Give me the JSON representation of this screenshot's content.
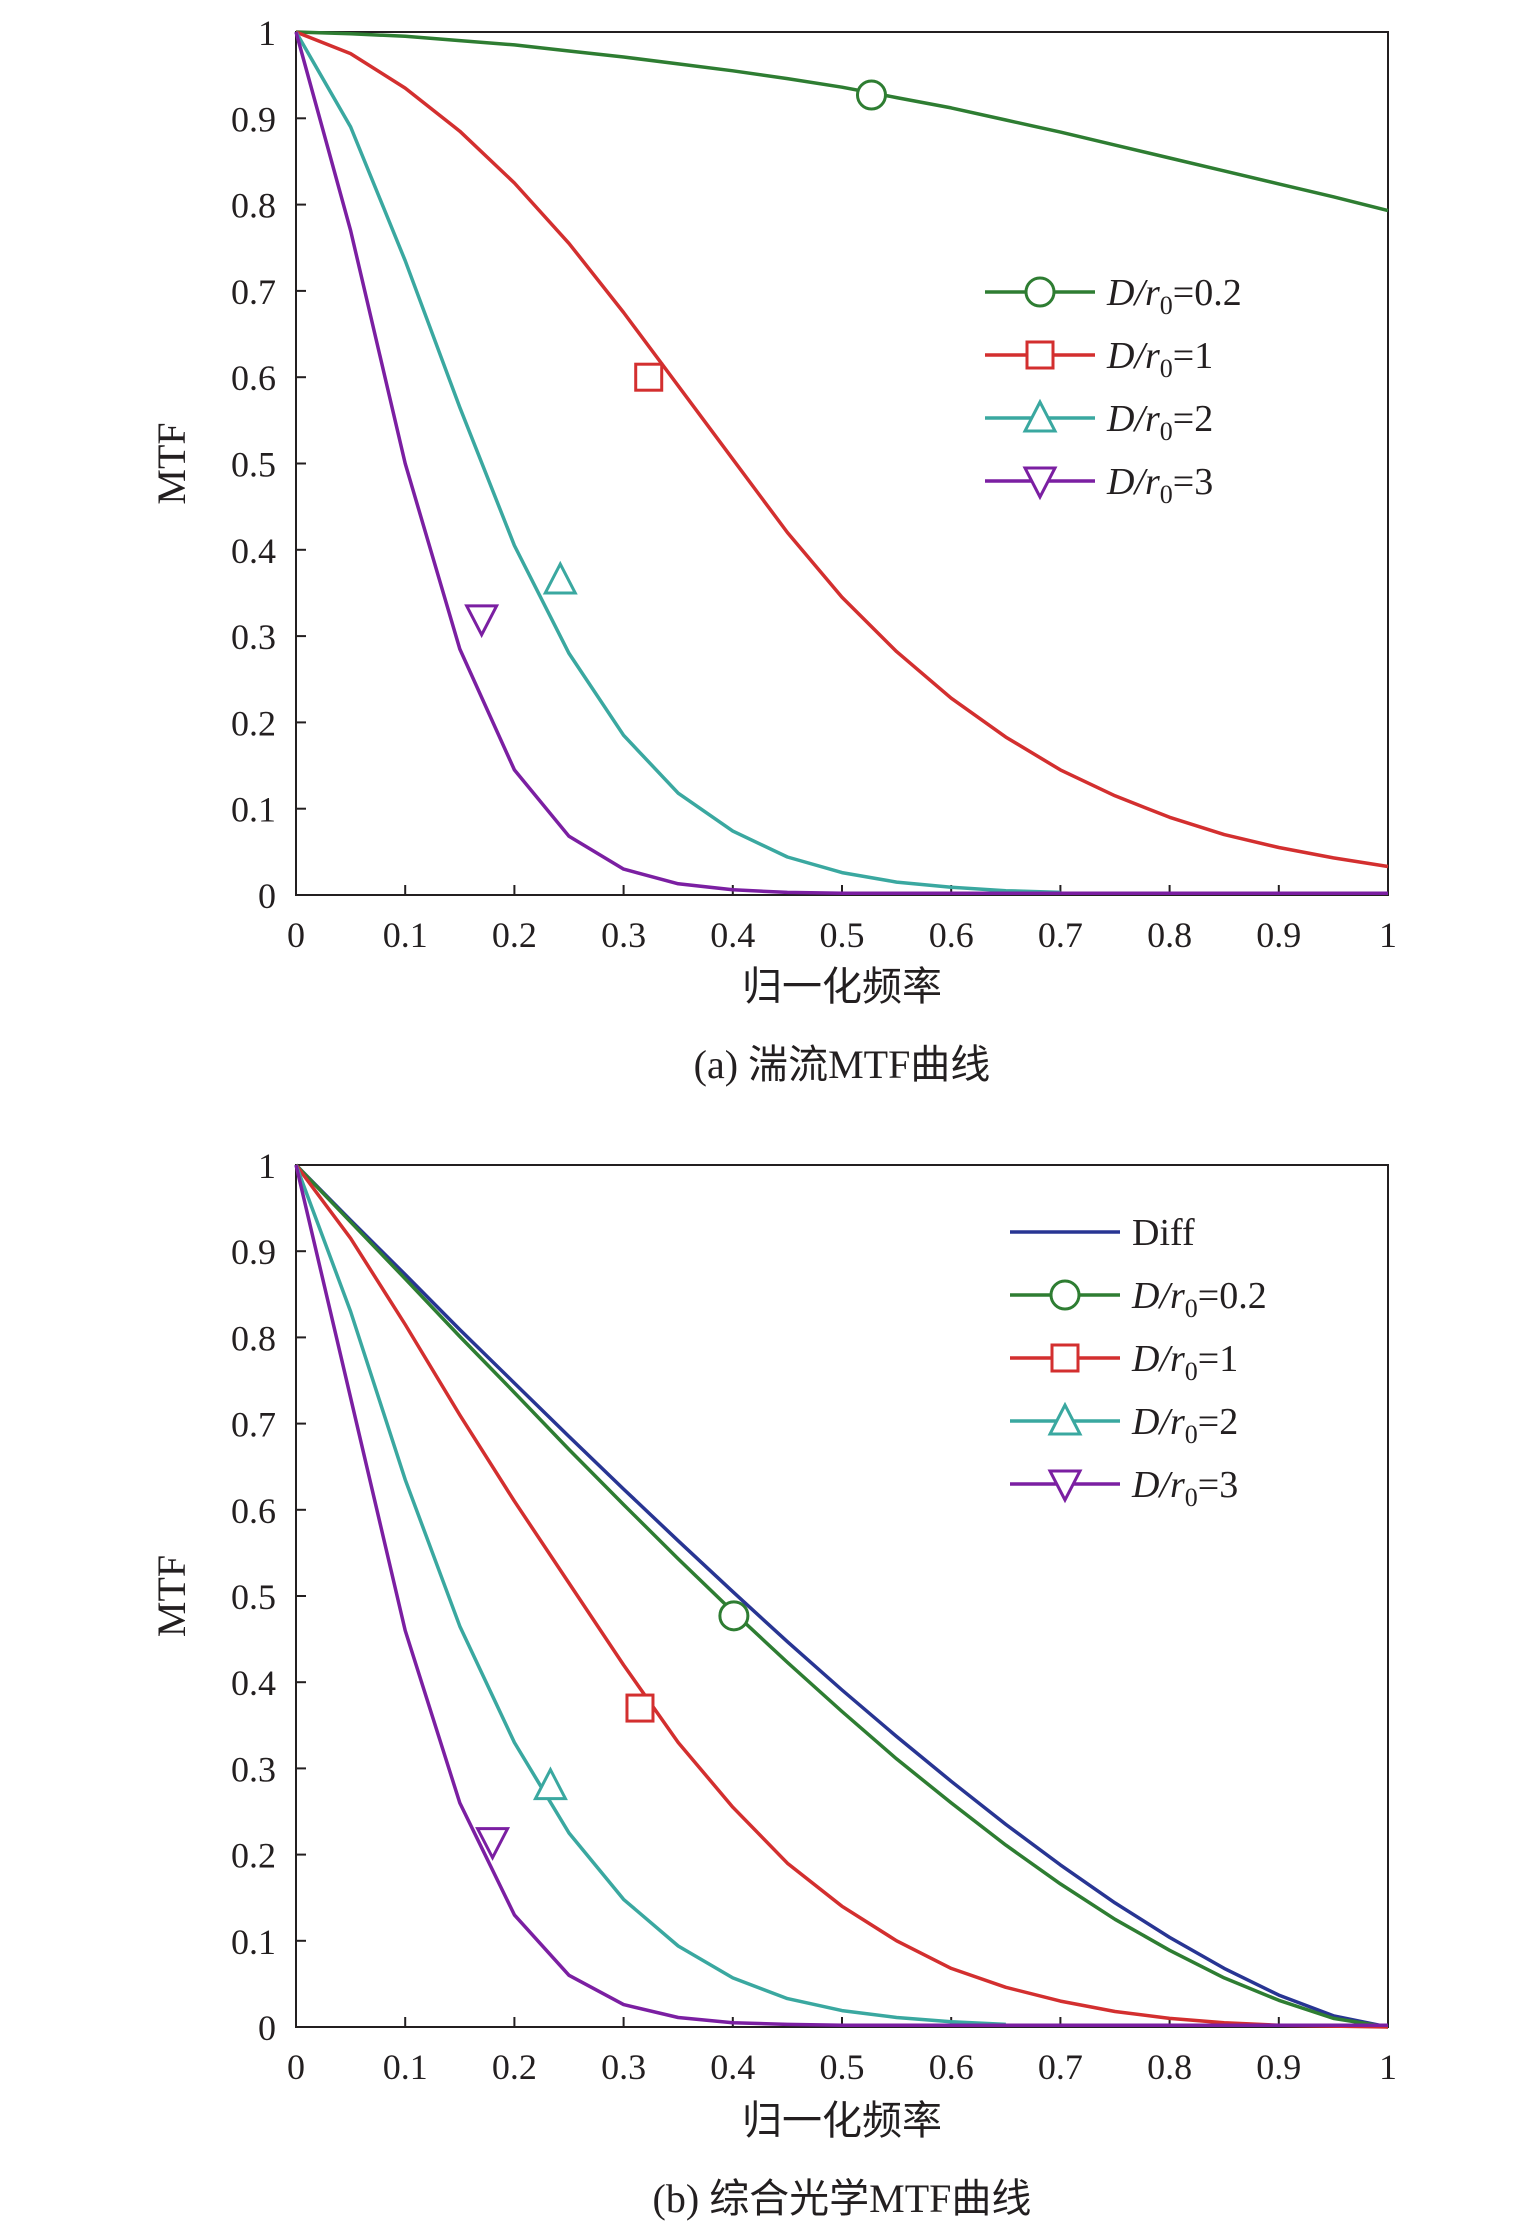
{
  "chart_data": [
    {
      "type": "line",
      "caption": "(a) 湍流MTF曲线",
      "xlabel": "归一化频率",
      "ylabel": "MTF",
      "xlim": [
        0,
        1
      ],
      "ylim": [
        0,
        1
      ],
      "xticks": [
        "0",
        "0.1",
        "0.2",
        "0.3",
        "0.4",
        "0.5",
        "0.6",
        "0.7",
        "0.8",
        "0.9",
        "1"
      ],
      "yticks": [
        "0",
        "0.1",
        "0.2",
        "0.3",
        "0.4",
        "0.5",
        "0.6",
        "0.7",
        "0.8",
        "0.9",
        "1"
      ],
      "grid": false,
      "legend_position": "right",
      "x": [
        0,
        0.05,
        0.1,
        0.15,
        0.2,
        0.25,
        0.3,
        0.35,
        0.4,
        0.45,
        0.5,
        0.55,
        0.6,
        0.65,
        0.7,
        0.75,
        0.8,
        0.85,
        0.9,
        0.95,
        1
      ],
      "series": [
        {
          "legend_prefix": "D/r",
          "legend_sub": "0",
          "legend_suffix": "=0.2",
          "color": "#2e7d32",
          "marker": "circle",
          "marker_at": [
            0.527,
            0.927
          ],
          "values": [
            1,
            0.998,
            0.995,
            0.99,
            0.985,
            0.978,
            0.971,
            0.963,
            0.955,
            0.946,
            0.936,
            0.924,
            0.912,
            0.898,
            0.884,
            0.869,
            0.854,
            0.839,
            0.824,
            0.809,
            0.793
          ]
        },
        {
          "legend_prefix": "D/r",
          "legend_sub": "0",
          "legend_suffix": "=1",
          "color": "#d32f2f",
          "marker": "square",
          "marker_at": [
            0.323,
            0.6
          ],
          "values": [
            1,
            0.975,
            0.935,
            0.885,
            0.825,
            0.755,
            0.675,
            0.59,
            0.505,
            0.42,
            0.345,
            0.282,
            0.228,
            0.183,
            0.145,
            0.115,
            0.09,
            0.07,
            0.055,
            0.043,
            0.033
          ]
        },
        {
          "legend_prefix": "D/r",
          "legend_sub": "0",
          "legend_suffix": "=2",
          "color": "#3aa8a0",
          "marker": "triangle-up",
          "marker_at": [
            0.242,
            0.365
          ],
          "values": [
            1,
            0.89,
            0.735,
            0.565,
            0.405,
            0.28,
            0.185,
            0.118,
            0.074,
            0.044,
            0.026,
            0.015,
            0.009,
            0.005,
            0.003,
            null,
            null,
            null,
            null,
            null,
            null
          ]
        },
        {
          "legend_prefix": "D/r",
          "legend_sub": "0",
          "legend_suffix": "=3",
          "color": "#7b1fa2",
          "marker": "triangle-down",
          "marker_at": [
            0.17,
            0.32
          ],
          "values": [
            1,
            0.77,
            0.5,
            0.285,
            0.145,
            0.068,
            0.03,
            0.013,
            0.006,
            0.003,
            0.002,
            0.002,
            0.002,
            0.002,
            0.002,
            0.002,
            0.002,
            0.002,
            0.002,
            0.002,
            0.002
          ]
        }
      ]
    },
    {
      "type": "line",
      "caption": "(b) 综合光学MTF曲线",
      "xlabel": "归一化频率",
      "ylabel": "MTF",
      "xlim": [
        0,
        1
      ],
      "ylim": [
        0,
        1
      ],
      "xticks": [
        "0",
        "0.1",
        "0.2",
        "0.3",
        "0.4",
        "0.5",
        "0.6",
        "0.7",
        "0.8",
        "0.9",
        "1"
      ],
      "yticks": [
        "0",
        "0.1",
        "0.2",
        "0.3",
        "0.4",
        "0.5",
        "0.6",
        "0.7",
        "0.8",
        "0.9",
        "1"
      ],
      "grid": false,
      "legend_position": "top-right",
      "x": [
        0,
        0.05,
        0.1,
        0.15,
        0.2,
        0.25,
        0.3,
        0.35,
        0.4,
        0.45,
        0.5,
        0.55,
        0.6,
        0.65,
        0.7,
        0.75,
        0.8,
        0.85,
        0.9,
        0.95,
        1
      ],
      "series": [
        {
          "legend_prefix": "Diff",
          "legend_sub": "",
          "legend_suffix": "",
          "color": "#283593",
          "marker": "none",
          "marker_at": null,
          "values": [
            1,
            0.936,
            0.873,
            0.809,
            0.747,
            0.685,
            0.624,
            0.564,
            0.505,
            0.447,
            0.391,
            0.337,
            0.285,
            0.235,
            0.188,
            0.144,
            0.104,
            0.068,
            0.037,
            0.013,
            0
          ]
        },
        {
          "legend_prefix": "D/r",
          "legend_sub": "0",
          "legend_suffix": "=0.2",
          "color": "#2e7d32",
          "marker": "circle",
          "marker_at": [
            0.401,
            0.477
          ],
          "values": [
            1,
            0.934,
            0.868,
            0.801,
            0.736,
            0.67,
            0.606,
            0.543,
            0.482,
            0.423,
            0.366,
            0.311,
            0.26,
            0.211,
            0.166,
            0.125,
            0.089,
            0.057,
            0.031,
            0.01,
            0
          ]
        },
        {
          "legend_prefix": "D/r",
          "legend_sub": "0",
          "legend_suffix": "=1",
          "color": "#d32f2f",
          "marker": "square",
          "marker_at": [
            0.315,
            0.37
          ],
          "values": [
            1,
            0.915,
            0.815,
            0.71,
            0.61,
            0.515,
            0.42,
            0.33,
            0.255,
            0.19,
            0.14,
            0.1,
            0.068,
            0.046,
            0.03,
            0.018,
            0.01,
            0.005,
            0.002,
            0.001,
            0
          ]
        },
        {
          "legend_prefix": "D/r",
          "legend_sub": "0",
          "legend_suffix": "=2",
          "color": "#3aa8a0",
          "marker": "triangle-up",
          "marker_at": [
            0.233,
            0.28
          ],
          "values": [
            1,
            0.83,
            0.635,
            0.465,
            0.33,
            0.225,
            0.148,
            0.094,
            0.057,
            0.033,
            0.019,
            0.011,
            0.006,
            0.003,
            null,
            null,
            null,
            null,
            null,
            null,
            null
          ]
        },
        {
          "legend_prefix": "D/r",
          "legend_sub": "0",
          "legend_suffix": "=3",
          "color": "#7b1fa2",
          "marker": "triangle-down",
          "marker_at": [
            0.18,
            0.215
          ],
          "values": [
            1,
            0.73,
            0.46,
            0.26,
            0.13,
            0.06,
            0.026,
            0.011,
            0.005,
            0.003,
            0.002,
            0.002,
            0.002,
            0.002,
            0.002,
            0.002,
            0.002,
            0.002,
            0.002,
            0.002,
            0.002
          ]
        }
      ]
    }
  ]
}
